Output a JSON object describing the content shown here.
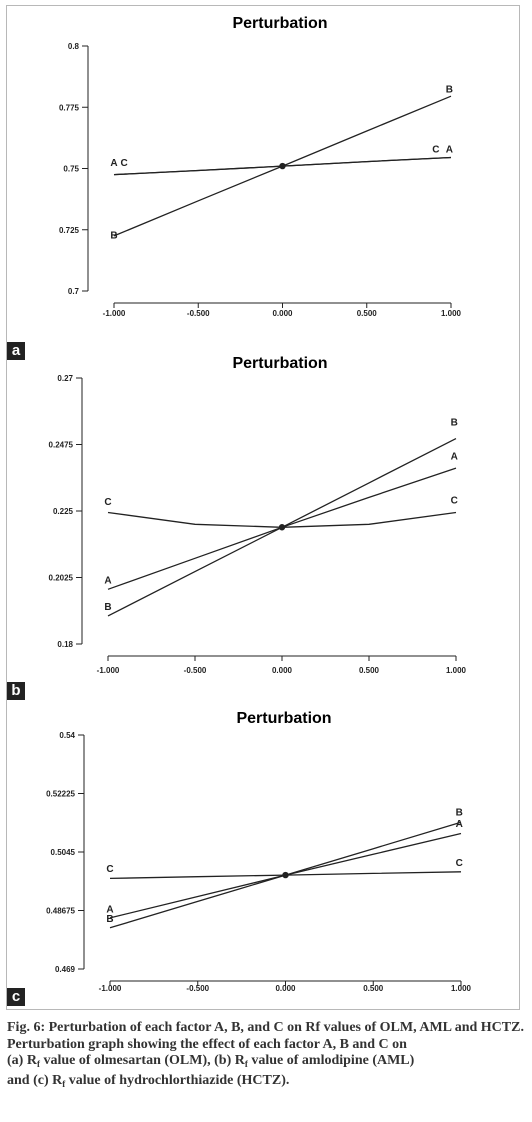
{
  "chart_data": [
    {
      "type": "line",
      "panel_label": "a",
      "title": "Perturbation",
      "xlabel": "",
      "ylabel": "",
      "xlim": [
        -1.0,
        1.0
      ],
      "ylim": [
        0.7,
        0.8
      ],
      "x_ticks": [
        "-1.000",
        "-0.500",
        "0.000",
        "0.500",
        "1.000"
      ],
      "y_ticks": [
        "0.7",
        "0.725",
        "0.75",
        "0.775",
        "0.8"
      ],
      "reference_point": {
        "x": 0.0,
        "y": 0.751
      },
      "series": [
        {
          "name": "A",
          "x": [
            -1,
            -0.5,
            0,
            0.5,
            1
          ],
          "y": [
            0.7475,
            0.7492,
            0.751,
            0.7528,
            0.7545
          ]
        },
        {
          "name": "B",
          "x": [
            -1,
            -0.5,
            0,
            0.5,
            1
          ],
          "y": [
            0.7225,
            0.7368,
            0.751,
            0.7653,
            0.7795
          ]
        },
        {
          "name": "C",
          "x": [
            -1,
            -0.5,
            0,
            0.5,
            1
          ],
          "y": [
            0.7475,
            0.7492,
            0.751,
            0.7528,
            0.7545
          ]
        }
      ],
      "series_labels": [
        {
          "text": "A",
          "x": -1.0,
          "y": 0.751
        },
        {
          "text": "C",
          "x": -0.94,
          "y": 0.751
        },
        {
          "text": "B",
          "x": -1.0,
          "y": 0.7215
        },
        {
          "text": "C",
          "x": 0.91,
          "y": 0.7565
        },
        {
          "text": "A",
          "x": 0.99,
          "y": 0.7565
        },
        {
          "text": "B",
          "x": 0.99,
          "y": 0.781
        }
      ],
      "grid": false,
      "legend": "none"
    },
    {
      "type": "line",
      "panel_label": "b",
      "title": "Perturbation",
      "xlabel": "",
      "ylabel": "",
      "xlim": [
        -1.0,
        1.0
      ],
      "ylim": [
        0.18,
        0.27
      ],
      "x_ticks": [
        "-1.000",
        "-0.500",
        "0.000",
        "0.500",
        "1.000"
      ],
      "y_ticks": [
        "0.18",
        "0.2025",
        "0.225",
        "0.2475",
        "0.27"
      ],
      "reference_point": {
        "x": 0.0,
        "y": 0.2195
      },
      "series": [
        {
          "name": "A",
          "x": [
            -1,
            -0.5,
            0,
            0.5,
            1
          ],
          "y": [
            0.1985,
            0.209,
            0.2195,
            0.2296,
            0.2395
          ]
        },
        {
          "name": "B",
          "x": [
            -1,
            -0.5,
            0,
            0.5,
            1
          ],
          "y": [
            0.1895,
            0.2045,
            0.2195,
            0.2345,
            0.2495
          ]
        },
        {
          "name": "C",
          "x": [
            -1,
            -0.5,
            0,
            0.5,
            1
          ],
          "y": [
            0.2245,
            0.2205,
            0.2195,
            0.2205,
            0.2245
          ]
        }
      ],
      "series_labels": [
        {
          "text": "C",
          "x": -1.0,
          "y": 0.227
        },
        {
          "text": "A",
          "x": -1.0,
          "y": 0.2005
        },
        {
          "text": "B",
          "x": -1.0,
          "y": 0.1915
        },
        {
          "text": "B",
          "x": 0.99,
          "y": 0.254
        },
        {
          "text": "A",
          "x": 0.99,
          "y": 0.2425
        },
        {
          "text": "C",
          "x": 0.99,
          "y": 0.2275
        }
      ],
      "grid": false,
      "legend": "none"
    },
    {
      "type": "line",
      "panel_label": "c",
      "title": "Perturbation",
      "xlabel": "",
      "ylabel": "",
      "xlim": [
        -1.0,
        1.0
      ],
      "ylim": [
        0.469,
        0.54
      ],
      "x_ticks": [
        "-1.000",
        "-0.500",
        "0.000",
        "0.500",
        "1.000"
      ],
      "y_ticks": [
        "0.469",
        "0.48675",
        "0.5045",
        "0.52225",
        "0.54"
      ],
      "reference_point": {
        "x": 0.0,
        "y": 0.4975
      },
      "series": [
        {
          "name": "A",
          "x": [
            -1,
            -0.5,
            0,
            0.5,
            1
          ],
          "y": [
            0.4845,
            0.491,
            0.4975,
            0.5038,
            0.5101
          ]
        },
        {
          "name": "B",
          "x": [
            -1,
            -0.5,
            0,
            0.5,
            1
          ],
          "y": [
            0.4815,
            0.4895,
            0.4975,
            0.5055,
            0.5135
          ]
        },
        {
          "name": "C",
          "x": [
            -1,
            -0.5,
            0,
            0.5,
            1
          ],
          "y": [
            0.4965,
            0.497,
            0.4975,
            0.498,
            0.4985
          ]
        }
      ],
      "series_labels": [
        {
          "text": "C",
          "x": -1.0,
          "y": 0.4985
        },
        {
          "text": "A",
          "x": -1.0,
          "y": 0.4862
        },
        {
          "text": "B",
          "x": -1.0,
          "y": 0.4832
        },
        {
          "text": "B",
          "x": 0.99,
          "y": 0.5155
        },
        {
          "text": "A",
          "x": 0.99,
          "y": 0.5121
        },
        {
          "text": "C",
          "x": 0.99,
          "y": 0.5003
        }
      ],
      "grid": false,
      "legend": "none"
    }
  ],
  "caption": {
    "title": "Fig. 6: Perturbation of each factor A, B, and C on Rf values of OLM, AML and HCTZ.",
    "line1": "Perturbation graph showing the effect of each factor A, B and C on",
    "line2_a": "(a) R",
    "line2_sub": "f",
    "line2_b": " value of olmesartan (OLM), (b) R",
    "line2_sub2": "f",
    "line2_c": " value of amlodipine (AML)",
    "line3_a": "and (c) R",
    "line3_sub": "f",
    "line3_b": " value of hydrochlorthiazide (HCTZ)."
  },
  "colors": {
    "line": "#222222",
    "panel_label_bg": "#222222",
    "caption_text": "#333333",
    "frame": "#b8b8b8"
  }
}
